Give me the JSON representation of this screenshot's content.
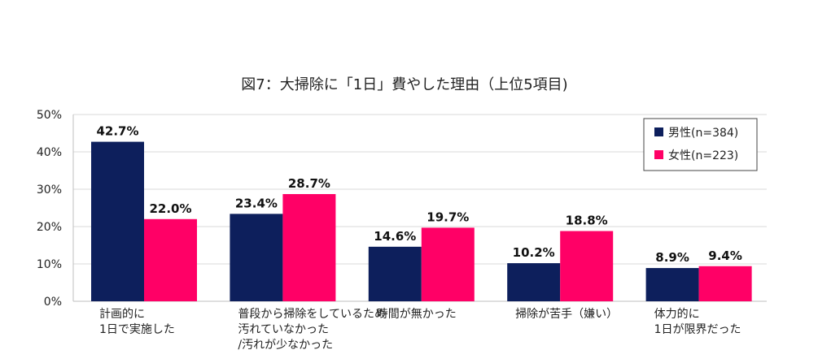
{
  "chart_data": {
    "type": "bar",
    "title": "図7：大掃除に「1日」費やした理由（上位5項目)",
    "categories": [
      [
        "計画的に",
        "1日で実施した"
      ],
      [
        "普段から掃除をしているため",
        "汚れていなかった",
        "/汚れが少なかった"
      ],
      [
        "時間が無かった"
      ],
      [
        "掃除が苦手（嫌い）"
      ],
      [
        "体力的に",
        "1日が限界だった"
      ]
    ],
    "series": [
      {
        "name": "男性(n=384)",
        "color": "#0d1f5c",
        "values": [
          42.7,
          23.4,
          14.6,
          10.2,
          8.9
        ]
      },
      {
        "name": "女性(n=223)",
        "color": "#ff0066",
        "values": [
          22.0,
          28.7,
          19.7,
          18.8,
          9.4
        ]
      }
    ],
    "ylim": [
      0,
      50
    ],
    "yticks": [
      0,
      10,
      20,
      30,
      40,
      50
    ],
    "ytick_labels": [
      "0%",
      "10%",
      "20%",
      "30%",
      "40%",
      "50%"
    ],
    "data_labels": [
      [
        "42.7%",
        "23.4%",
        "14.6%",
        "10.2%",
        "8.9%"
      ],
      [
        "22.0%",
        "28.7%",
        "19.7%",
        "18.8%",
        "9.4%"
      ]
    ],
    "legend_position": "top-right",
    "grid": true
  }
}
